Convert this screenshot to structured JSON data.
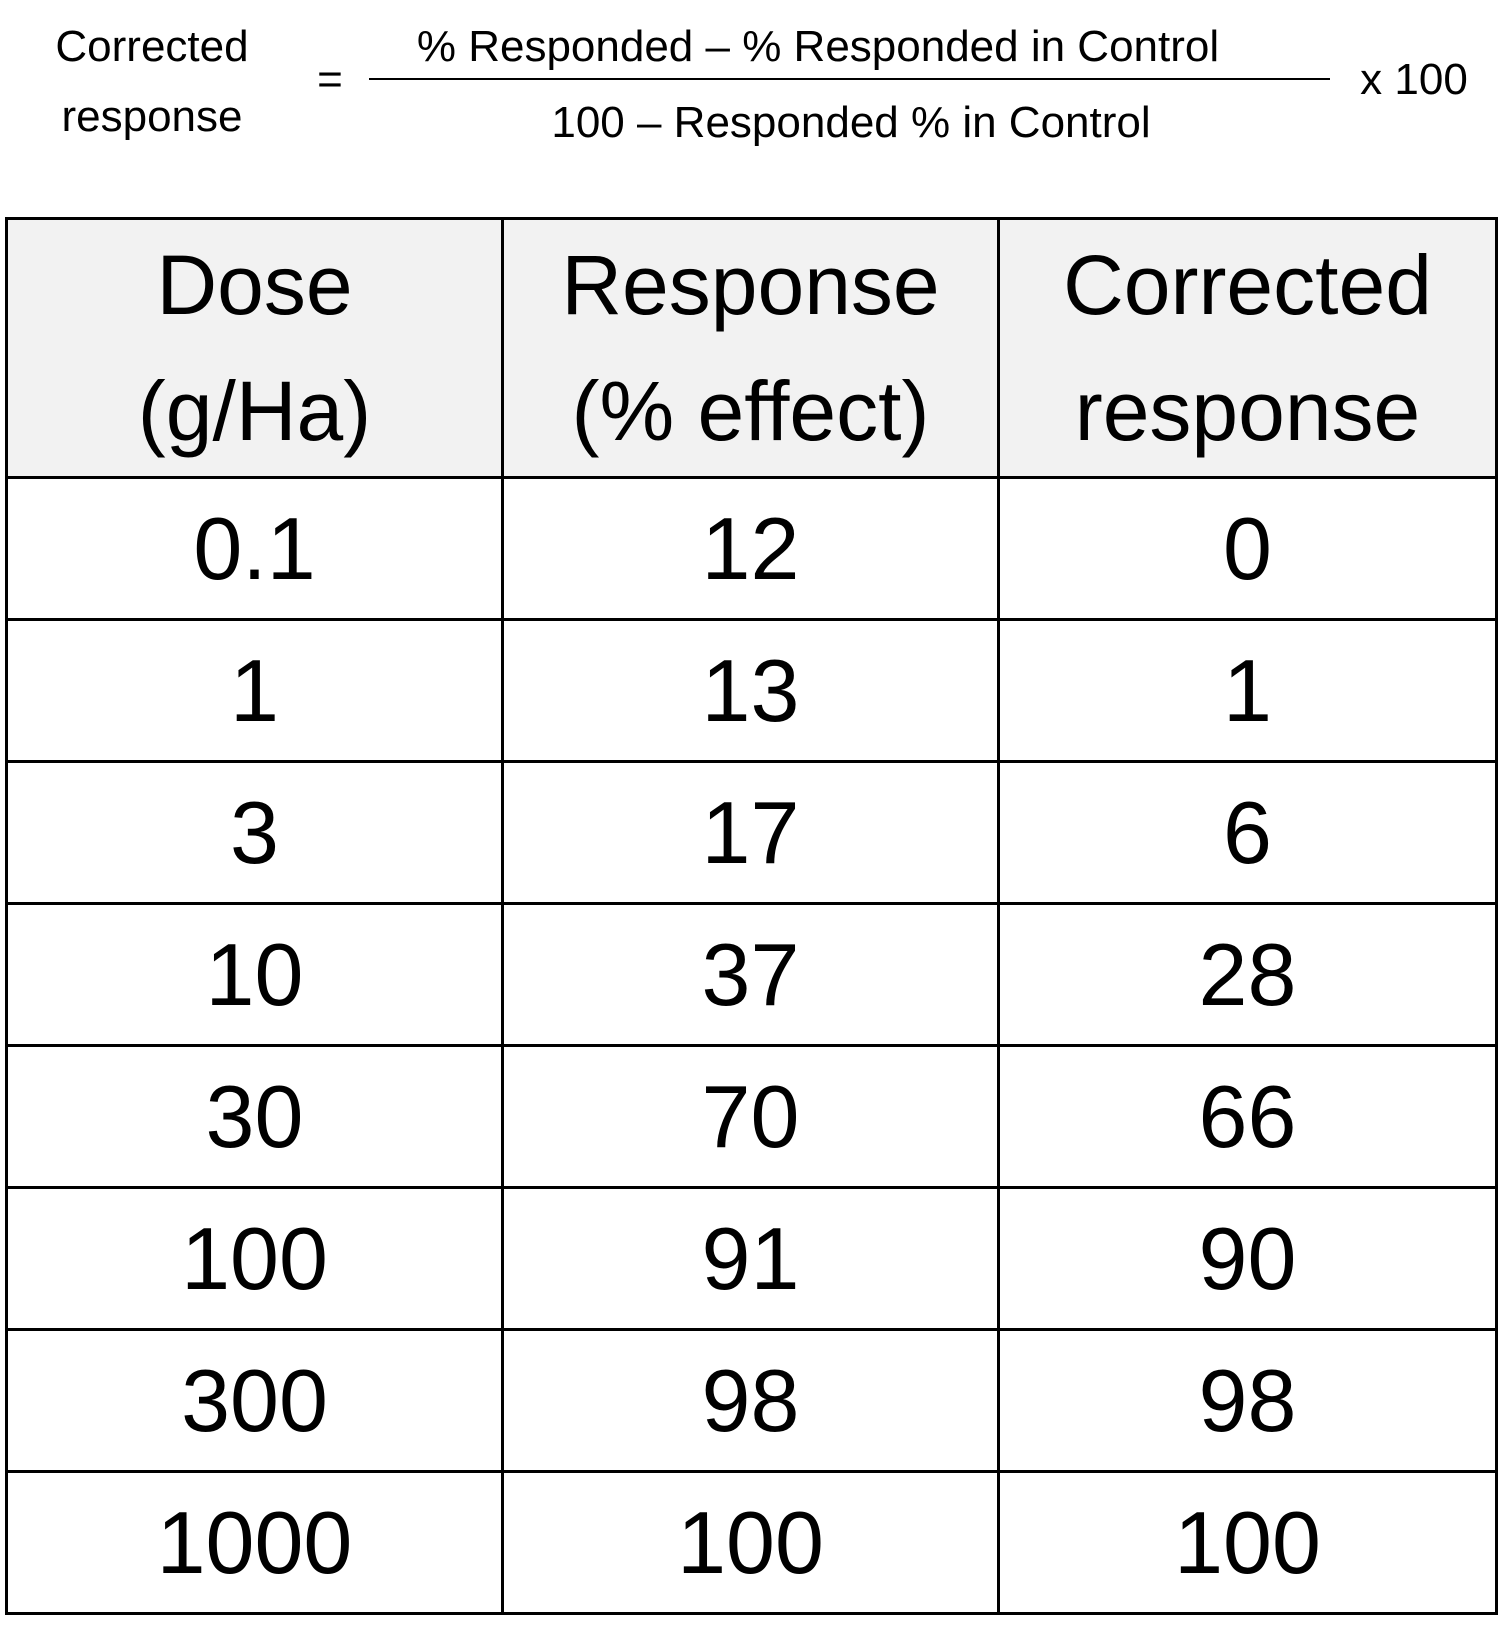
{
  "formula": {
    "lhs": [
      "Corrected",
      "response"
    ],
    "equals": "=",
    "numerator": "% Responded – % Responded in Control",
    "denominator": "100 – Responded % in Control",
    "multiplier": "x 100"
  },
  "table": {
    "header": [
      [
        "Dose",
        "(g/Ha)"
      ],
      [
        "Response",
        "(% effect)"
      ],
      [
        "Corrected",
        "response"
      ]
    ],
    "rows": [
      [
        "0.1",
        "12",
        "0"
      ],
      [
        "1",
        "13",
        "1"
      ],
      [
        "3",
        "17",
        "6"
      ],
      [
        "10",
        "37",
        "28"
      ],
      [
        "30",
        "70",
        "66"
      ],
      [
        "100",
        "91",
        "90"
      ],
      [
        "300",
        "98",
        "98"
      ],
      [
        "1000",
        "100",
        "100"
      ]
    ]
  }
}
